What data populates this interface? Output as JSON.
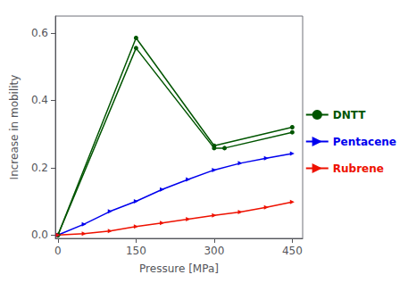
{
  "chart_data": {
    "type": "line",
    "xlabel": "Pressure [MPa]",
    "ylabel": "Increase in mobility",
    "series": [
      {
        "name": "DNTT",
        "color": "#005500",
        "marker": "circle",
        "x": [
          0,
          150,
          300,
          450
        ],
        "values": [
          0,
          0.585,
          0.265,
          0.32
        ]
      },
      {
        "name": "DNTT",
        "color": "#005500",
        "marker": "circle",
        "x": [
          0,
          150,
          300,
          320,
          450
        ],
        "values": [
          0.0,
          0.555,
          0.258,
          0.258,
          0.305
        ]
      },
      {
        "name": "Pentacene",
        "color": "#0000EE",
        "marker": "triangle-right",
        "x": [
          0,
          50,
          100,
          150,
          200,
          250,
          300,
          350,
          400,
          450
        ],
        "values": [
          0,
          0.032,
          0.07,
          0.1,
          0.135,
          0.165,
          0.193,
          0.213,
          0.228,
          0.242
        ]
      },
      {
        "name": "Rubrene",
        "color": "#EE1100",
        "marker": "triangle-right",
        "x": [
          0,
          50,
          100,
          150,
          200,
          250,
          300,
          350,
          400,
          450
        ],
        "values": [
          0,
          0.004,
          0.012,
          0.025,
          0.036,
          0.047,
          0.058,
          0.068,
          0.082,
          0.098
        ]
      }
    ],
    "xlim": [
      -5,
      470
    ],
    "ylim": [
      -0.01,
      0.65
    ],
    "xticks": [
      0,
      150,
      300,
      450
    ],
    "yticks": [
      {
        "value": 0,
        "label": "0.0"
      },
      0.2,
      0.4,
      0.6
    ],
    "grid": false,
    "legend": "right"
  }
}
